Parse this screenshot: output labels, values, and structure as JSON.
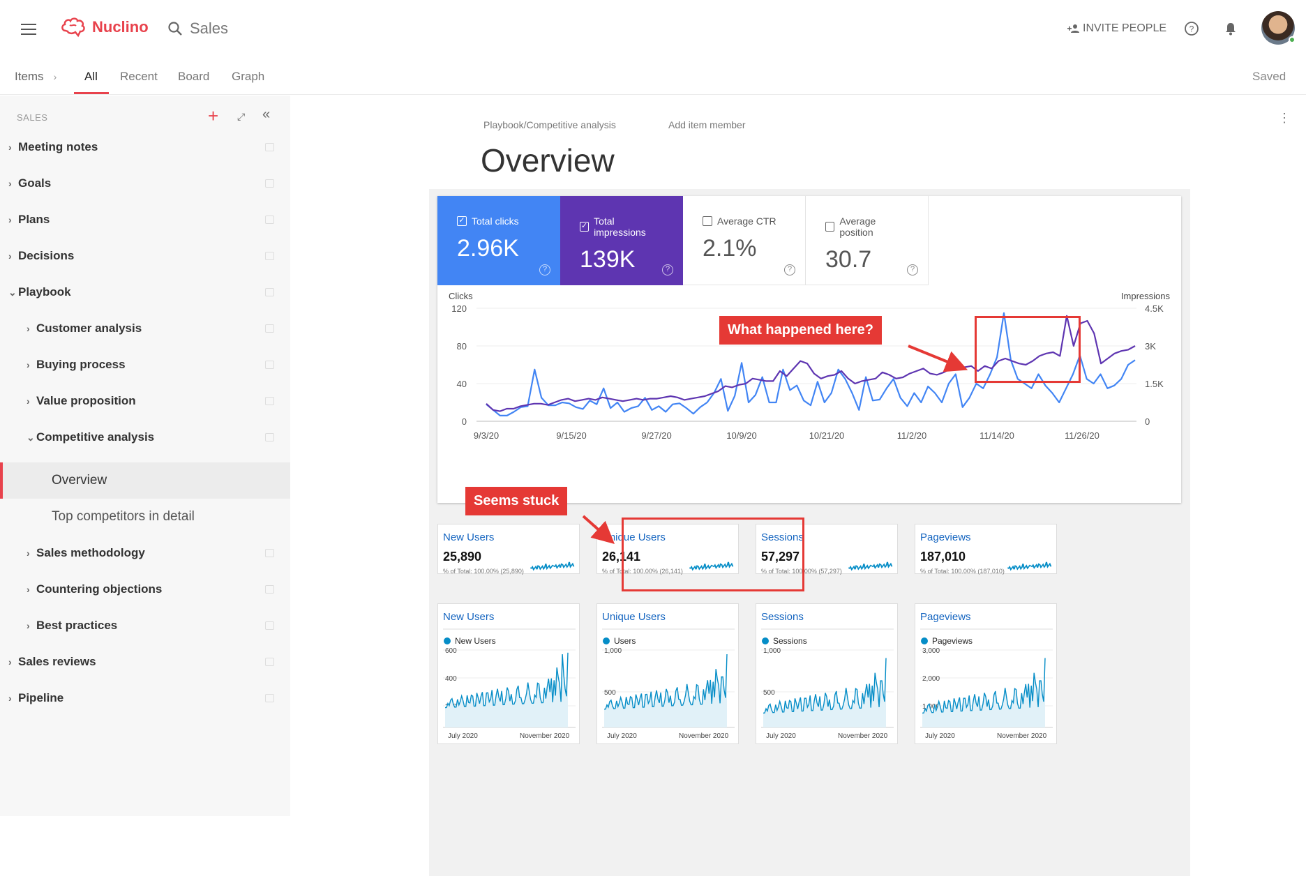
{
  "app": {
    "name": "Nuclino",
    "workspace": "Sales",
    "invite_label": "INVITE PEOPLE",
    "saved_label": "Saved"
  },
  "nav": {
    "items_label": "Items",
    "tabs": [
      "All",
      "Recent",
      "Board",
      "Graph"
    ]
  },
  "sidebar": {
    "header": "SALES",
    "items": [
      "Meeting notes",
      "Goals",
      "Plans",
      "Decisions",
      "Playbook",
      "Customer analysis",
      "Buying process",
      "Value proposition",
      "Competitive analysis",
      "Overview",
      "Top competitors in detail",
      "Sales methodology",
      "Countering objections",
      "Best practices",
      "Sales reviews",
      "Pipeline"
    ]
  },
  "page": {
    "breadcrumb": "Playbook/Competitive analysis",
    "add_member": "Add item member",
    "title": "Overview"
  },
  "metrics": [
    {
      "label": "Total clicks",
      "value": "2.96K",
      "checked": true,
      "color": "#4285f4"
    },
    {
      "label": "Total impressions",
      "value": "139K",
      "checked": true,
      "color": "#5e35b1"
    },
    {
      "label": "Average CTR",
      "value": "2.1%",
      "checked": false
    },
    {
      "label": "Average position",
      "value": "30.7",
      "checked": false
    }
  ],
  "chart_data": {
    "type": "line",
    "ylabel": "Clicks",
    "y2label": "Impressions",
    "ylim": [
      0,
      120
    ],
    "y2lim": [
      0,
      4500
    ],
    "yticks": [
      "120",
      "80",
      "40",
      "0"
    ],
    "y2ticks": [
      "4.5K",
      "3K",
      "1.5K",
      "0"
    ],
    "xticks": [
      "9/3/20",
      "9/15/20",
      "9/27/20",
      "10/9/20",
      "10/21/20",
      "11/2/20",
      "11/14/20",
      "11/26/20"
    ],
    "series": [
      {
        "name": "Clicks",
        "color": "#4285f4",
        "values": [
          18,
          12,
          6,
          6,
          10,
          15,
          16,
          55,
          25,
          17,
          17,
          20,
          19,
          15,
          13,
          22,
          18,
          35,
          14,
          20,
          10,
          14,
          16,
          25,
          12,
          16,
          10,
          18,
          19,
          14,
          8,
          15,
          20,
          30,
          45,
          11,
          27,
          62,
          20,
          28,
          47,
          20,
          20,
          55,
          33,
          38,
          22,
          17,
          42,
          20,
          30,
          55,
          45,
          30,
          12,
          47,
          22,
          23,
          35,
          45,
          25,
          16,
          30,
          20,
          37,
          30,
          20,
          40,
          50,
          15,
          25,
          40,
          35,
          50,
          68,
          115,
          65,
          45,
          40,
          35,
          50,
          38,
          30,
          20,
          35,
          50,
          70,
          45,
          40,
          50,
          35,
          38,
          45,
          60,
          65
        ]
      },
      {
        "name": "Impressions",
        "color": "#5e35b1",
        "values": [
          700,
          450,
          400,
          500,
          500,
          600,
          650,
          700,
          700,
          650,
          750,
          850,
          900,
          800,
          850,
          900,
          850,
          950,
          900,
          850,
          800,
          850,
          900,
          850,
          900,
          900,
          950,
          1000,
          950,
          850,
          900,
          950,
          1000,
          1100,
          1200,
          1400,
          1350,
          1450,
          1500,
          1700,
          1650,
          1600,
          1600,
          2000,
          1800,
          2100,
          2400,
          2300,
          1900,
          1700,
          1800,
          1850,
          2000,
          1700,
          1500,
          1600,
          1650,
          1700,
          1950,
          1850,
          1700,
          1750,
          1900,
          2000,
          2100,
          1900,
          1850,
          1950,
          2100,
          2300,
          2150,
          2200,
          2000,
          2200,
          2100,
          2400,
          2500,
          2400,
          2300,
          2250,
          2400,
          2600,
          2700,
          2750,
          2600,
          4200,
          3000,
          3900,
          4000,
          3500,
          2300,
          2500,
          2700,
          2800,
          2850,
          3000
        ]
      }
    ]
  },
  "callouts": {
    "what_happened": "What happened here?",
    "seems_stuck": "Seems stuck"
  },
  "summary_cards": [
    {
      "title": "New Users",
      "value": "25,890",
      "sub": "% of Total: 100.00% (25,890)"
    },
    {
      "title": "Unique Users",
      "value": "26,141",
      "sub": "% of Total: 100.00% (26,141)"
    },
    {
      "title": "Sessions",
      "value": "57,297",
      "sub": "% of Total: 100.00% (57,297)"
    },
    {
      "title": "Pageviews",
      "value": "187,010",
      "sub": "% of Total: 100.00% (187,010)"
    }
  ],
  "trend_cards": [
    {
      "title": "New Users",
      "legend": "New Users",
      "yticks": [
        "600",
        "400",
        "200"
      ],
      "xticks": [
        "July 2020",
        "November 2020"
      ]
    },
    {
      "title": "Unique Users",
      "legend": "Users",
      "yticks": [
        "1,000",
        "500"
      ],
      "xticks": [
        "July 2020",
        "November 2020"
      ]
    },
    {
      "title": "Sessions",
      "legend": "Sessions",
      "yticks": [
        "1,000",
        "500"
      ],
      "xticks": [
        "July 2020",
        "November 2020"
      ]
    },
    {
      "title": "Pageviews",
      "legend": "Pageviews",
      "yticks": [
        "3,000",
        "2,000",
        "1,000"
      ],
      "xticks": [
        "July 2020",
        "November 2020"
      ]
    }
  ]
}
